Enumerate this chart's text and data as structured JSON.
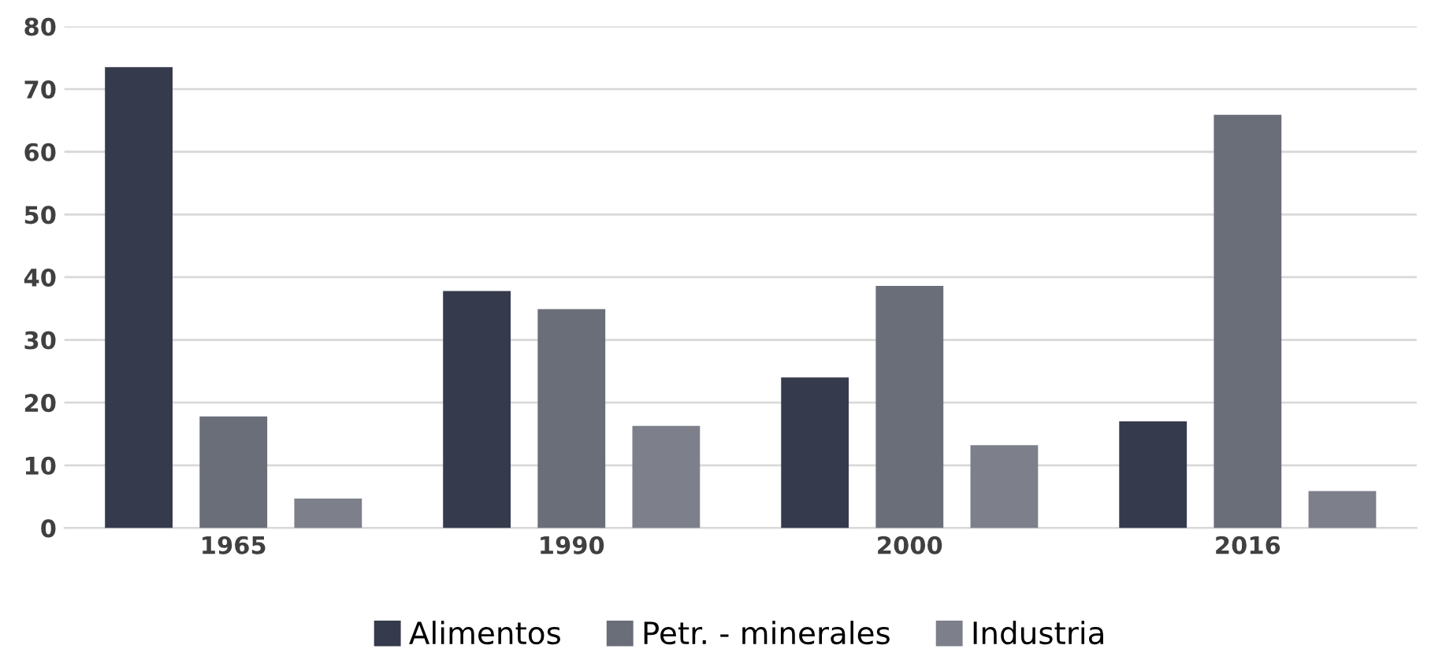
{
  "chart_data": {
    "type": "bar",
    "categories": [
      "1965",
      "1990",
      "2000",
      "2016"
    ],
    "series": [
      {
        "name": "Alimentos",
        "color": "#353a4c",
        "values": [
          73.5,
          37.8,
          24,
          17
        ]
      },
      {
        "name": "Petr. - minerales",
        "color": "#6a6e79",
        "values": [
          17.8,
          34.9,
          38.6,
          65.9
        ]
      },
      {
        "name": "Industria",
        "color": "#7d808a",
        "values": [
          4.7,
          16.3,
          13.2,
          5.9
        ]
      }
    ],
    "ylim": [
      0,
      80
    ],
    "yticks": [
      0,
      10,
      20,
      30,
      40,
      50,
      60,
      70,
      80
    ],
    "grid": "y",
    "legend": "bottom"
  }
}
